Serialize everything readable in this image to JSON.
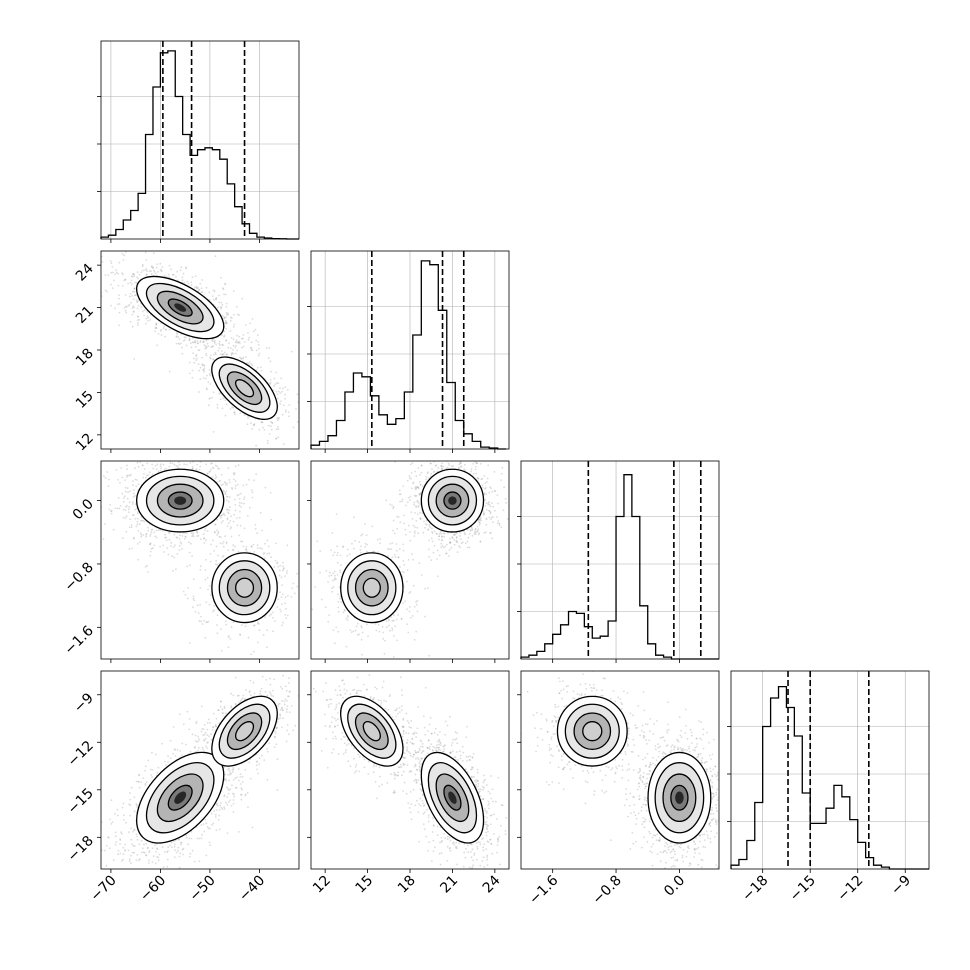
{
  "chart_data": {
    "type": "corner",
    "title": "",
    "grid": true,
    "num_params": 4,
    "params": [
      {
        "range": [
          -72,
          -32
        ],
        "ticks": [
          "−70",
          "−60",
          "−50",
          "−40"
        ],
        "tick_values": [
          -70,
          -60,
          -50,
          -40
        ],
        "quantiles": [
          -59.5,
          -53.7,
          -43.0
        ],
        "hist_edges_start": -72,
        "hist_bin_width": 1.5,
        "hist_counts": [
          0.01,
          0.02,
          0.05,
          0.1,
          0.15,
          0.24,
          0.55,
          0.8,
          0.98,
          0.99,
          0.75,
          0.55,
          0.44,
          0.47,
          0.48,
          0.47,
          0.42,
          0.29,
          0.17,
          0.08,
          0.03,
          0.01,
          0.005,
          0.002,
          0.001,
          0.0,
          0.0
        ]
      },
      {
        "range": [
          11,
          25
        ],
        "ticks": [
          "12",
          "15",
          "18",
          "21",
          "24"
        ],
        "tick_values": [
          12,
          15,
          18,
          21,
          24
        ],
        "quantiles": [
          15.3,
          20.3,
          21.8
        ],
        "hist_edges_start": 11,
        "hist_bin_width": 0.6,
        "hist_counts": [
          0.02,
          0.04,
          0.07,
          0.15,
          0.3,
          0.4,
          0.38,
          0.28,
          0.18,
          0.13,
          0.16,
          0.3,
          0.6,
          0.99,
          0.97,
          0.73,
          0.35,
          0.15,
          0.08,
          0.04,
          0.01,
          0.005,
          0.0
        ]
      },
      {
        "range": [
          -2.0,
          0.5
        ],
        "ticks": [
          "−1.6",
          "−0.8",
          "0.0"
        ],
        "tick_values": [
          -1.6,
          -0.8,
          0.0
        ],
        "quantiles": [
          -1.15,
          -0.07,
          0.27
        ],
        "hist_edges_start": -2.0,
        "hist_bin_width": 0.1,
        "hist_counts": [
          0.01,
          0.02,
          0.04,
          0.08,
          0.13,
          0.18,
          0.25,
          0.24,
          0.17,
          0.11,
          0.12,
          0.2,
          0.75,
          0.97,
          0.75,
          0.28,
          0.08,
          0.02,
          0.01,
          0.0,
          0.0,
          0.0,
          0.0,
          0.0,
          0.0
        ]
      },
      {
        "range": [
          -20,
          -7.5
        ],
        "ticks": [
          "−18",
          "−15",
          "−12",
          "−9"
        ],
        "tick_values": [
          -18,
          -15,
          -12,
          -9
        ],
        "quantiles": [
          -16.4,
          -15.0,
          -11.3
        ],
        "hist_edges_start": -20,
        "hist_bin_width": 0.5,
        "hist_counts": [
          0.02,
          0.05,
          0.15,
          0.35,
          0.75,
          0.9,
          0.96,
          0.85,
          0.7,
          0.4,
          0.24,
          0.24,
          0.32,
          0.44,
          0.38,
          0.26,
          0.14,
          0.06,
          0.02,
          0.01,
          0.0,
          0.0,
          0.0,
          0.0,
          0.0
        ]
      }
    ],
    "clusters": [
      {
        "mean": [
          -56,
          21,
          0.0,
          -15.5
        ],
        "sd": [
          4,
          1.0,
          0.18,
          1.3
        ],
        "weight": 0.68,
        "rho": {
          "0-1": -0.6,
          "0-3": 0.5,
          "1-3": -0.5,
          "0-2": 0.0,
          "1-2": 0.0,
          "2-3": 0.0
        }
      },
      {
        "mean": [
          -43,
          15.3,
          -1.1,
          -11.3
        ],
        "sd": [
          3,
          1.0,
          0.2,
          1.0
        ],
        "weight": 0.32,
        "rho": {
          "0-1": -0.6,
          "0-3": 0.5,
          "1-3": -0.5,
          "0-2": 0.0,
          "1-2": 0.0,
          "2-3": 0.0
        }
      }
    ]
  }
}
